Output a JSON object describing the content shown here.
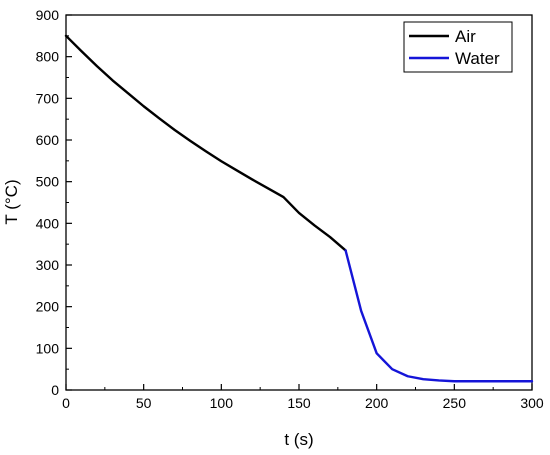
{
  "chart_data": {
    "type": "line",
    "title": "",
    "xlabel": "t (s)",
    "ylabel": "T (°C)",
    "xlim": [
      0,
      300
    ],
    "ylim": [
      0,
      900
    ],
    "xticks": [
      0,
      50,
      100,
      150,
      200,
      250,
      300
    ],
    "yticks": [
      0,
      100,
      200,
      300,
      400,
      500,
      600,
      700,
      800,
      900
    ],
    "grid": false,
    "legend_position": "top-right",
    "series": [
      {
        "name": "Air",
        "color": "#000000",
        "x": [
          0,
          10,
          20,
          30,
          40,
          50,
          60,
          70,
          80,
          90,
          100,
          110,
          120,
          130,
          140,
          150,
          160,
          170,
          180
        ],
        "y": [
          850,
          813,
          777,
          743,
          712,
          681,
          652,
          624,
          598,
          573,
          549,
          527,
          505,
          484,
          463,
          425,
          395,
          367,
          335
        ]
      },
      {
        "name": "Water",
        "color": "#1515d8",
        "x": [
          180,
          190,
          200,
          210,
          220,
          230,
          240,
          250,
          260,
          270,
          280,
          290,
          300
        ],
        "y": [
          335,
          190,
          88,
          50,
          33,
          26,
          23,
          21,
          21,
          21,
          21,
          21,
          21
        ]
      }
    ]
  }
}
